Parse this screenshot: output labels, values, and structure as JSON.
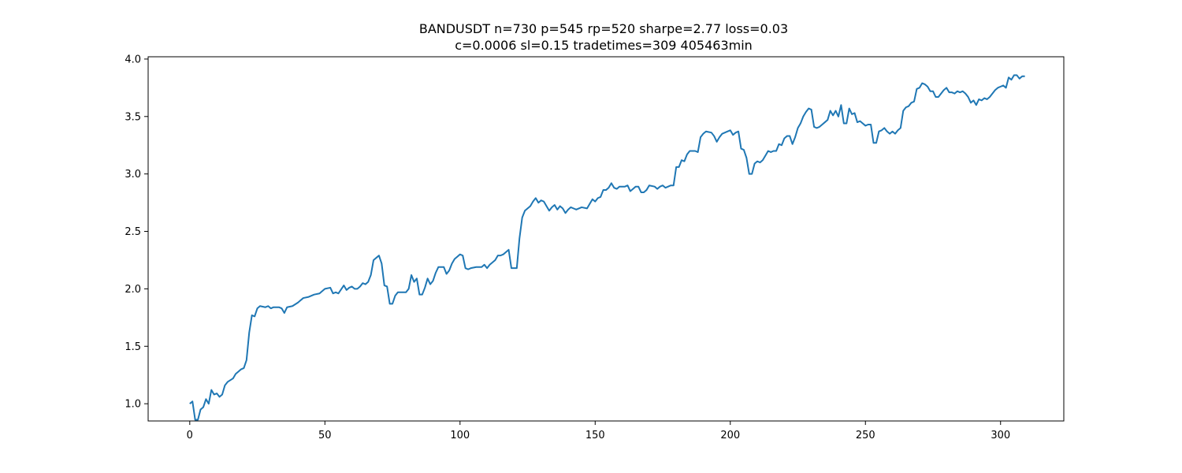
{
  "chart_data": {
    "type": "line",
    "title_line1": "BANDUSDT n=730 p=545 rp=520 sharpe=2.77 loss=0.03",
    "title_line2": "c=0.0006 sl=0.15 tradetimes=309  405463min",
    "xlabel": "",
    "ylabel": "",
    "xlim": [
      -15.4,
      323.4
    ],
    "ylim": [
      0.85,
      4.02
    ],
    "xticks": [
      0,
      50,
      100,
      150,
      200,
      250,
      300
    ],
    "xtick_labels": [
      "0",
      "50",
      "100",
      "150",
      "200",
      "250",
      "300"
    ],
    "yticks": [
      1.0,
      1.5,
      2.0,
      2.5,
      3.0,
      3.5,
      4.0
    ],
    "ytick_labels": [
      "1.0",
      "1.5",
      "2.0",
      "2.5",
      "3.0",
      "3.5",
      "4.0"
    ],
    "grid": false,
    "legend": "none",
    "line_color": "#1f77b4",
    "anchors": [
      [
        0,
        1.0
      ],
      [
        1,
        1.02
      ],
      [
        2,
        0.86
      ],
      [
        3,
        0.86
      ],
      [
        4,
        0.95
      ],
      [
        5,
        0.97
      ],
      [
        6,
        1.04
      ],
      [
        7,
        1.0
      ],
      [
        8,
        1.12
      ],
      [
        9,
        1.08
      ],
      [
        10,
        1.09
      ],
      [
        11,
        1.06
      ],
      [
        12,
        1.08
      ],
      [
        13,
        1.16
      ],
      [
        14,
        1.19
      ],
      [
        16,
        1.22
      ],
      [
        17,
        1.26
      ],
      [
        18,
        1.28
      ],
      [
        19,
        1.3
      ],
      [
        20,
        1.31
      ],
      [
        21,
        1.38
      ],
      [
        22,
        1.62
      ],
      [
        23,
        1.77
      ],
      [
        24,
        1.76
      ],
      [
        25,
        1.83
      ],
      [
        26,
        1.85
      ],
      [
        28,
        1.84
      ],
      [
        29,
        1.85
      ],
      [
        30,
        1.83
      ],
      [
        31,
        1.84
      ],
      [
        33,
        1.84
      ],
      [
        34,
        1.83
      ],
      [
        35,
        1.79
      ],
      [
        36,
        1.84
      ],
      [
        38,
        1.85
      ],
      [
        40,
        1.88
      ],
      [
        42,
        1.92
      ],
      [
        44,
        1.93
      ],
      [
        46,
        1.95
      ],
      [
        48,
        1.96
      ],
      [
        50,
        2.0
      ],
      [
        52,
        2.01
      ],
      [
        53,
        1.96
      ],
      [
        54,
        1.97
      ],
      [
        55,
        1.96
      ],
      [
        57,
        2.03
      ],
      [
        58,
        1.99
      ],
      [
        59,
        2.01
      ],
      [
        60,
        2.02
      ],
      [
        61,
        2.0
      ],
      [
        62,
        2.0
      ],
      [
        63,
        2.02
      ],
      [
        64,
        2.05
      ],
      [
        65,
        2.04
      ],
      [
        66,
        2.06
      ],
      [
        67,
        2.12
      ],
      [
        68,
        2.25
      ],
      [
        69,
        2.27
      ],
      [
        70,
        2.29
      ],
      [
        71,
        2.22
      ],
      [
        72,
        2.03
      ],
      [
        73,
        2.02
      ],
      [
        74,
        1.87
      ],
      [
        75,
        1.87
      ],
      [
        76,
        1.94
      ],
      [
        77,
        1.97
      ],
      [
        78,
        1.97
      ],
      [
        80,
        1.97
      ],
      [
        81,
        2.0
      ],
      [
        82,
        2.12
      ],
      [
        83,
        2.06
      ],
      [
        84,
        2.09
      ],
      [
        85,
        1.95
      ],
      [
        86,
        1.95
      ],
      [
        87,
        2.01
      ],
      [
        88,
        2.09
      ],
      [
        89,
        2.04
      ],
      [
        90,
        2.07
      ],
      [
        91,
        2.14
      ],
      [
        92,
        2.19
      ],
      [
        94,
        2.19
      ],
      [
        95,
        2.13
      ],
      [
        96,
        2.16
      ],
      [
        97,
        2.22
      ],
      [
        98,
        2.26
      ],
      [
        99,
        2.28
      ],
      [
        100,
        2.3
      ],
      [
        101,
        2.29
      ],
      [
        102,
        2.18
      ],
      [
        103,
        2.17
      ],
      [
        104,
        2.18
      ],
      [
        106,
        2.19
      ],
      [
        108,
        2.19
      ],
      [
        109,
        2.21
      ],
      [
        110,
        2.18
      ],
      [
        111,
        2.21
      ],
      [
        112,
        2.23
      ],
      [
        113,
        2.25
      ],
      [
        114,
        2.29
      ],
      [
        115,
        2.29
      ],
      [
        116,
        2.3
      ],
      [
        117,
        2.32
      ],
      [
        118,
        2.34
      ],
      [
        119,
        2.18
      ],
      [
        121,
        2.18
      ],
      [
        122,
        2.44
      ],
      [
        123,
        2.62
      ],
      [
        124,
        2.68
      ],
      [
        125,
        2.7
      ],
      [
        126,
        2.72
      ],
      [
        127,
        2.76
      ],
      [
        128,
        2.79
      ],
      [
        129,
        2.75
      ],
      [
        130,
        2.77
      ],
      [
        131,
        2.76
      ],
      [
        132,
        2.72
      ],
      [
        133,
        2.68
      ],
      [
        134,
        2.71
      ],
      [
        135,
        2.73
      ],
      [
        136,
        2.69
      ],
      [
        137,
        2.72
      ],
      [
        138,
        2.7
      ],
      [
        139,
        2.66
      ],
      [
        140,
        2.69
      ],
      [
        141,
        2.71
      ],
      [
        142,
        2.7
      ],
      [
        143,
        2.69
      ],
      [
        145,
        2.71
      ],
      [
        147,
        2.7
      ],
      [
        148,
        2.74
      ],
      [
        149,
        2.78
      ],
      [
        150,
        2.76
      ],
      [
        151,
        2.79
      ],
      [
        152,
        2.8
      ],
      [
        153,
        2.86
      ],
      [
        154,
        2.86
      ],
      [
        155,
        2.88
      ],
      [
        156,
        2.92
      ],
      [
        157,
        2.88
      ],
      [
        158,
        2.87
      ],
      [
        159,
        2.89
      ],
      [
        161,
        2.89
      ],
      [
        162,
        2.9
      ],
      [
        163,
        2.85
      ],
      [
        164,
        2.87
      ],
      [
        165,
        2.89
      ],
      [
        166,
        2.89
      ],
      [
        167,
        2.84
      ],
      [
        168,
        2.84
      ],
      [
        169,
        2.86
      ],
      [
        170,
        2.9
      ],
      [
        172,
        2.89
      ],
      [
        173,
        2.87
      ],
      [
        174,
        2.89
      ],
      [
        175,
        2.9
      ],
      [
        176,
        2.88
      ],
      [
        177,
        2.89
      ],
      [
        178,
        2.9
      ],
      [
        179,
        2.9
      ],
      [
        180,
        3.06
      ],
      [
        181,
        3.06
      ],
      [
        182,
        3.12
      ],
      [
        183,
        3.11
      ],
      [
        184,
        3.17
      ],
      [
        185,
        3.2
      ],
      [
        186,
        3.2
      ],
      [
        187,
        3.2
      ],
      [
        188,
        3.19
      ],
      [
        189,
        3.32
      ],
      [
        190,
        3.35
      ],
      [
        191,
        3.37
      ],
      [
        193,
        3.36
      ],
      [
        194,
        3.33
      ],
      [
        195,
        3.28
      ],
      [
        196,
        3.32
      ],
      [
        197,
        3.35
      ],
      [
        199,
        3.37
      ],
      [
        200,
        3.38
      ],
      [
        201,
        3.34
      ],
      [
        202,
        3.36
      ],
      [
        203,
        3.37
      ],
      [
        204,
        3.22
      ],
      [
        205,
        3.21
      ],
      [
        206,
        3.14
      ],
      [
        207,
        3.0
      ],
      [
        208,
        3.0
      ],
      [
        209,
        3.09
      ],
      [
        210,
        3.11
      ],
      [
        211,
        3.1
      ],
      [
        212,
        3.12
      ],
      [
        213,
        3.16
      ],
      [
        214,
        3.2
      ],
      [
        215,
        3.19
      ],
      [
        216,
        3.2
      ],
      [
        217,
        3.2
      ],
      [
        218,
        3.26
      ],
      [
        219,
        3.25
      ],
      [
        220,
        3.31
      ],
      [
        221,
        3.33
      ],
      [
        222,
        3.33
      ],
      [
        223,
        3.26
      ],
      [
        224,
        3.32
      ],
      [
        225,
        3.4
      ],
      [
        226,
        3.44
      ],
      [
        227,
        3.5
      ],
      [
        228,
        3.54
      ],
      [
        229,
        3.57
      ],
      [
        230,
        3.56
      ],
      [
        231,
        3.41
      ],
      [
        232,
        3.4
      ],
      [
        233,
        3.41
      ],
      [
        234,
        3.43
      ],
      [
        235,
        3.45
      ],
      [
        236,
        3.47
      ],
      [
        237,
        3.55
      ],
      [
        238,
        3.51
      ],
      [
        239,
        3.55
      ],
      [
        240,
        3.5
      ],
      [
        241,
        3.6
      ],
      [
        242,
        3.44
      ],
      [
        243,
        3.44
      ],
      [
        244,
        3.57
      ],
      [
        245,
        3.52
      ],
      [
        246,
        3.53
      ],
      [
        247,
        3.45
      ],
      [
        248,
        3.46
      ],
      [
        249,
        3.44
      ],
      [
        250,
        3.42
      ],
      [
        251,
        3.43
      ],
      [
        252,
        3.43
      ],
      [
        253,
        3.27
      ],
      [
        254,
        3.27
      ],
      [
        255,
        3.37
      ],
      [
        256,
        3.38
      ],
      [
        257,
        3.4
      ],
      [
        258,
        3.37
      ],
      [
        259,
        3.35
      ],
      [
        260,
        3.37
      ],
      [
        261,
        3.35
      ],
      [
        262,
        3.38
      ],
      [
        263,
        3.4
      ],
      [
        264,
        3.55
      ],
      [
        265,
        3.58
      ],
      [
        266,
        3.59
      ],
      [
        267,
        3.62
      ],
      [
        268,
        3.63
      ],
      [
        269,
        3.74
      ],
      [
        270,
        3.75
      ],
      [
        271,
        3.79
      ],
      [
        272,
        3.78
      ],
      [
        273,
        3.76
      ],
      [
        274,
        3.72
      ],
      [
        275,
        3.72
      ],
      [
        276,
        3.67
      ],
      [
        277,
        3.67
      ],
      [
        278,
        3.7
      ],
      [
        279,
        3.73
      ],
      [
        280,
        3.75
      ],
      [
        281,
        3.71
      ],
      [
        282,
        3.71
      ],
      [
        283,
        3.7
      ],
      [
        284,
        3.72
      ],
      [
        285,
        3.71
      ],
      [
        286,
        3.72
      ],
      [
        287,
        3.7
      ],
      [
        288,
        3.67
      ],
      [
        289,
        3.62
      ],
      [
        290,
        3.64
      ],
      [
        291,
        3.6
      ],
      [
        292,
        3.65
      ],
      [
        293,
        3.64
      ],
      [
        294,
        3.66
      ],
      [
        295,
        3.65
      ],
      [
        296,
        3.67
      ],
      [
        297,
        3.7
      ],
      [
        298,
        3.73
      ],
      [
        299,
        3.75
      ],
      [
        300,
        3.76
      ],
      [
        301,
        3.77
      ],
      [
        302,
        3.75
      ],
      [
        303,
        3.84
      ],
      [
        304,
        3.82
      ],
      [
        305,
        3.86
      ],
      [
        306,
        3.86
      ],
      [
        307,
        3.83
      ],
      [
        308,
        3.85
      ],
      [
        309,
        3.85
      ]
    ]
  }
}
